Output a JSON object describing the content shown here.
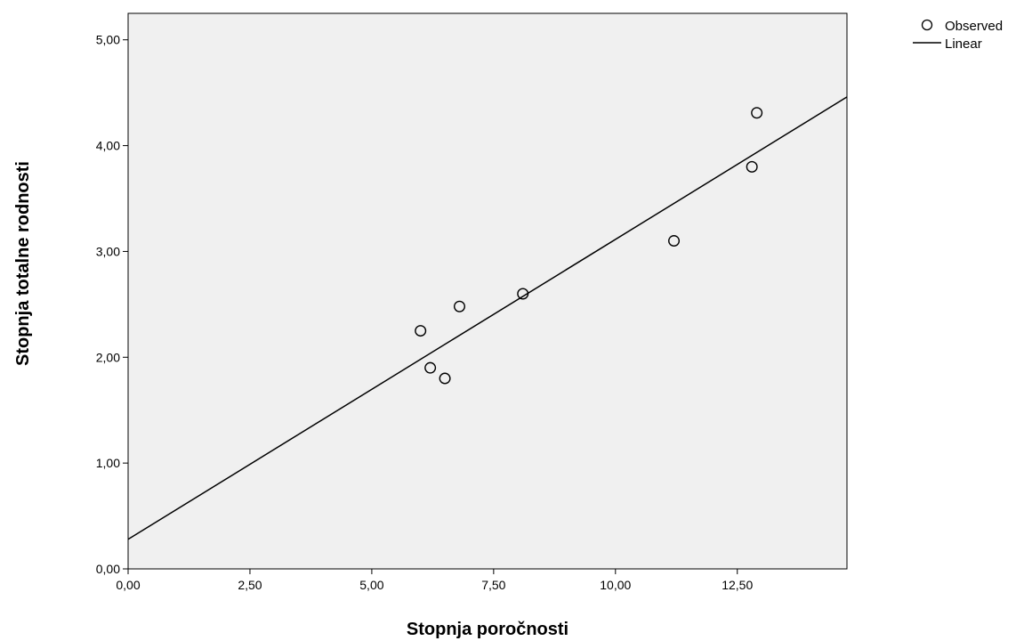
{
  "chart_data": {
    "type": "scatter",
    "xlabel": "Stopnja poročnosti",
    "ylabel": "Stopnja totalne rodnosti",
    "xlim": [
      0,
      14.75
    ],
    "ylim": [
      0,
      5.25
    ],
    "x_ticks": [
      0,
      2.5,
      5,
      7.5,
      10,
      12.5
    ],
    "x_tick_labels": [
      "0,00",
      "2,50",
      "5,00",
      "7,50",
      "10,00",
      "12,50"
    ],
    "y_ticks": [
      0,
      1,
      2,
      3,
      4,
      5
    ],
    "y_tick_labels": [
      "0,00",
      "1,00",
      "2,00",
      "3,00",
      "4,00",
      "5,00"
    ],
    "grid": false,
    "plot_background": "#f0f0f0",
    "legend_position": "top-right",
    "series": [
      {
        "name": "Observed",
        "kind": "points",
        "marker": "hollow-circle",
        "points": [
          {
            "x": 6.0,
            "y": 2.25
          },
          {
            "x": 6.2,
            "y": 1.9
          },
          {
            "x": 6.5,
            "y": 1.8
          },
          {
            "x": 6.8,
            "y": 2.48
          },
          {
            "x": 8.1,
            "y": 2.6
          },
          {
            "x": 11.2,
            "y": 3.1
          },
          {
            "x": 12.8,
            "y": 3.8
          },
          {
            "x": 12.9,
            "y": 4.31
          }
        ]
      },
      {
        "name": "Linear",
        "kind": "line",
        "points": [
          {
            "x": 0,
            "y": 0.28
          },
          {
            "x": 14.75,
            "y": 4.46
          }
        ]
      }
    ]
  }
}
